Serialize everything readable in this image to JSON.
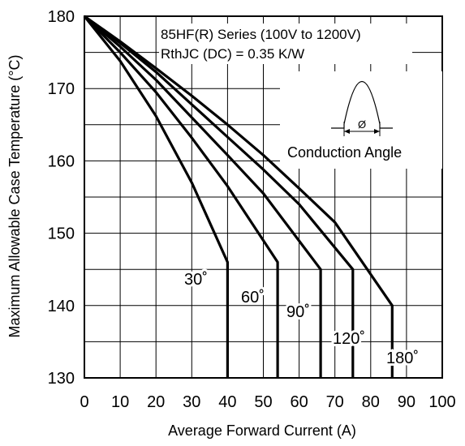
{
  "chart_data": {
    "type": "line",
    "xlabel": "Average Forward Current (A)",
    "ylabel": "Maximum Allowable Case Temperature (°C)",
    "xlim": [
      0,
      100
    ],
    "ylim": [
      130,
      180
    ],
    "xticks": [
      "0",
      "10",
      "20",
      "30",
      "40",
      "50",
      "60",
      "70",
      "80",
      "90",
      "100"
    ],
    "yticks": [
      "130",
      "140",
      "150",
      "160",
      "170",
      "180"
    ],
    "grid": true,
    "annotations": {
      "line1": "85HF(R) Series (100V to 1200V)",
      "line2": "RthJC (DC) = 0.35 K/W",
      "inset_label": "Conduction Angle",
      "inset_symbol": "Ø"
    },
    "series": [
      {
        "name": "30˚",
        "x": [
          0,
          10,
          20,
          30,
          40,
          40
        ],
        "y": [
          180,
          173.8,
          166.2,
          157,
          146,
          130
        ]
      },
      {
        "name": "60˚",
        "x": [
          0,
          10,
          20,
          30,
          40,
          54,
          54
        ],
        "y": [
          180,
          175,
          169.5,
          163.2,
          156.5,
          146,
          130
        ]
      },
      {
        "name": "90˚",
        "x": [
          0,
          10,
          20,
          30,
          40,
          50,
          66,
          66
        ],
        "y": [
          180,
          175.8,
          171.2,
          166,
          160.8,
          155.5,
          145,
          130
        ]
      },
      {
        "name": "120˚",
        "x": [
          0,
          10,
          20,
          30,
          40,
          50,
          60,
          75,
          75
        ],
        "y": [
          180,
          176.3,
          172.3,
          167.8,
          163.3,
          158.8,
          154,
          145,
          130
        ]
      },
      {
        "name": "180˚",
        "x": [
          0,
          10,
          20,
          30,
          40,
          50,
          60,
          70,
          86,
          86
        ],
        "y": [
          180,
          176.5,
          172.8,
          169,
          165,
          160.8,
          156.2,
          151.5,
          140,
          130
        ]
      }
    ]
  }
}
